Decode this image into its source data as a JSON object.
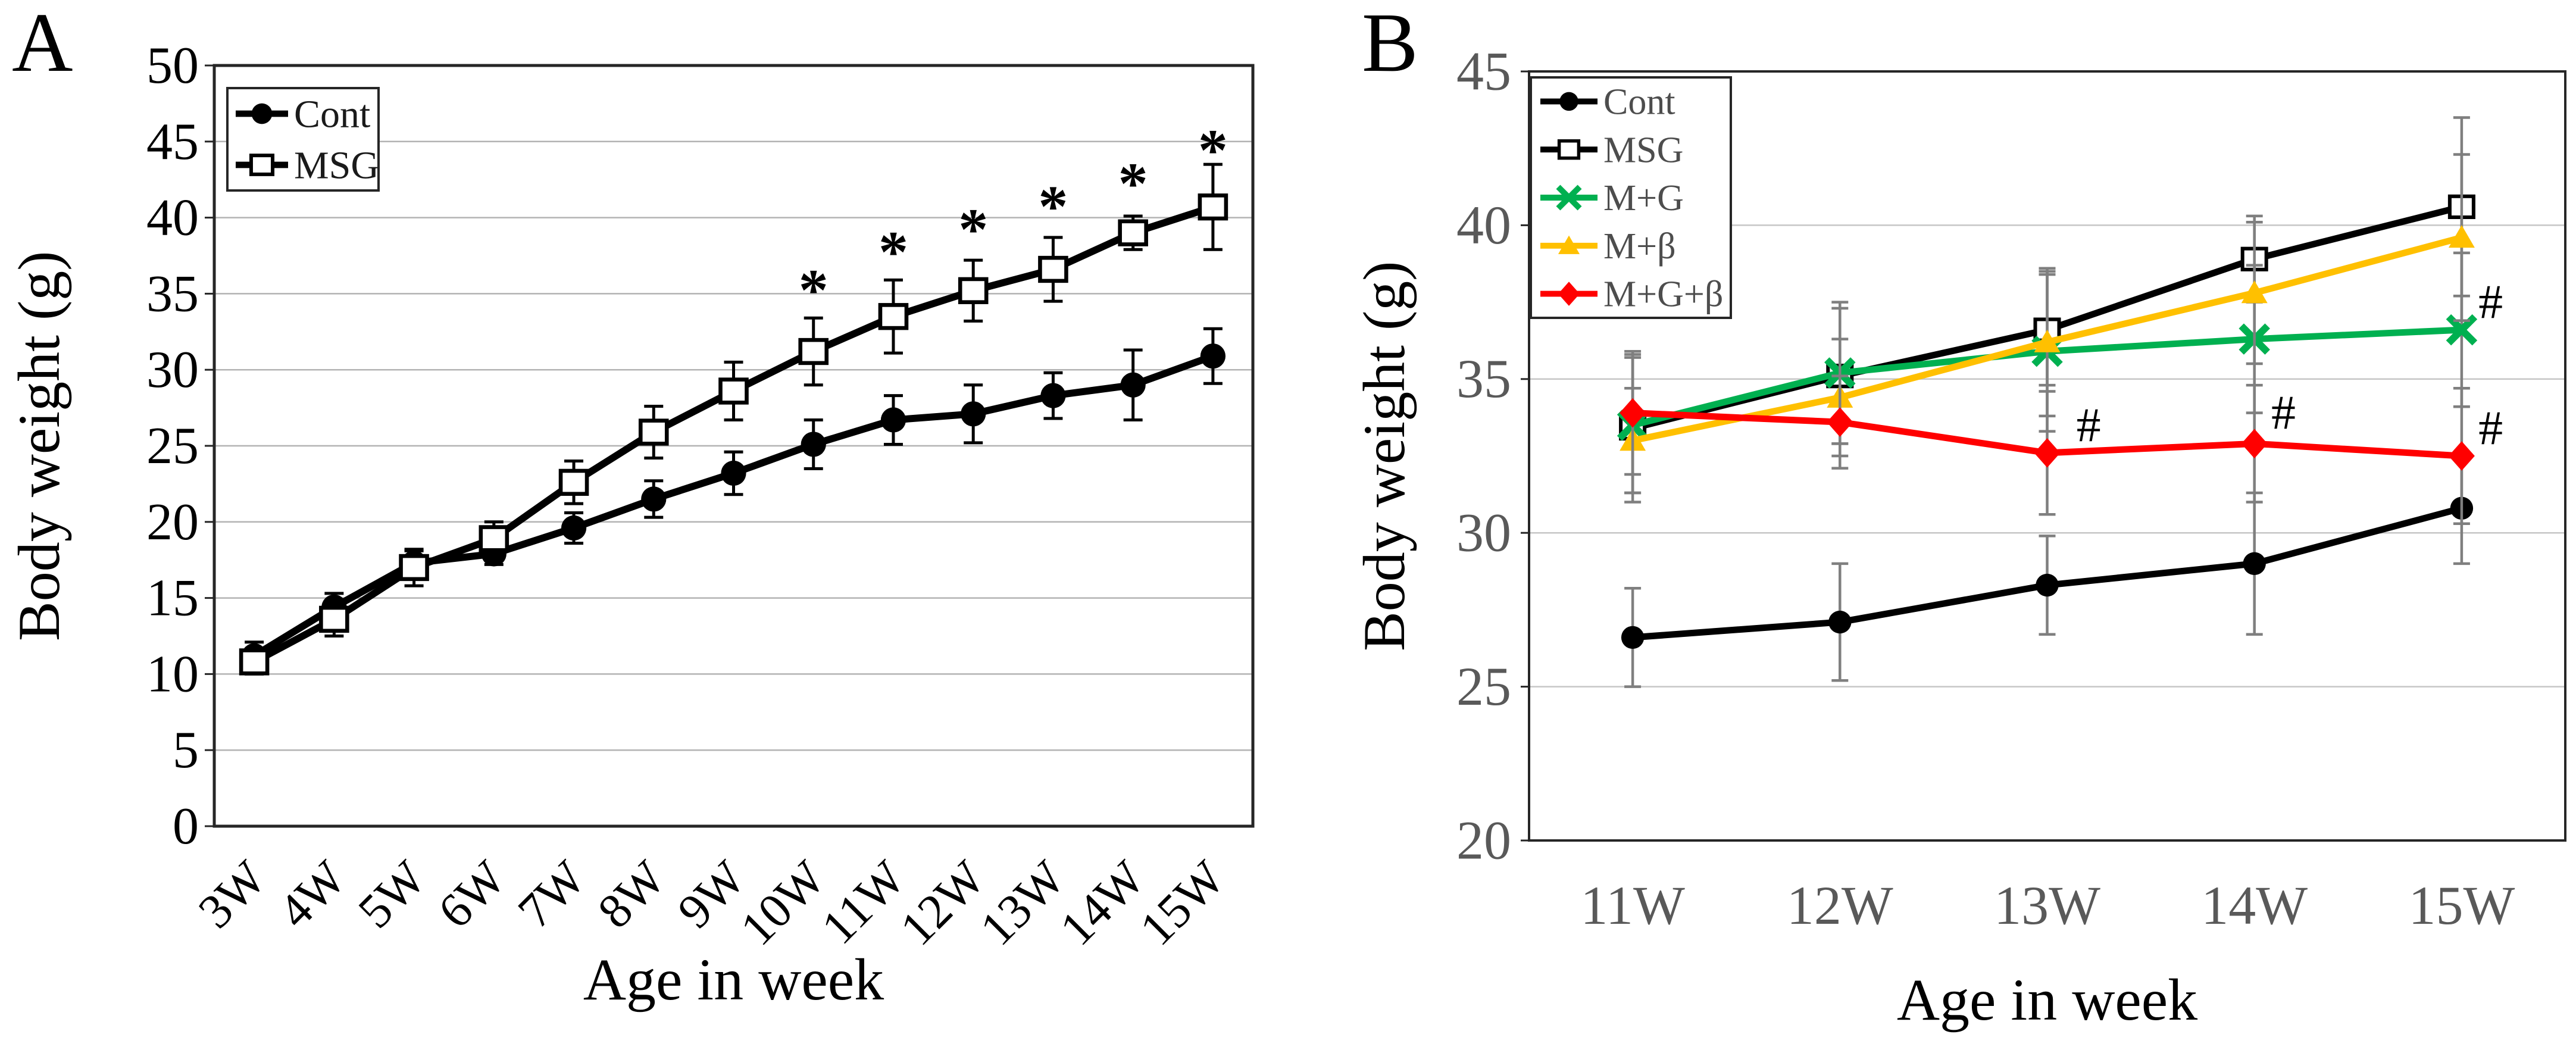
{
  "figure_background": "#ffffff",
  "chart_data": [
    {
      "type": "line",
      "panel_label": "A",
      "title": "",
      "xlabel": "Age in week",
      "ylabel": "Body weight (g)",
      "categories": [
        "3W",
        "4W",
        "5W",
        "6W",
        "7W",
        "8W",
        "9W",
        "10W",
        "11W",
        "12W",
        "13W",
        "14W",
        "15W"
      ],
      "ylim": [
        0,
        50
      ],
      "ytick_step": 5,
      "grid": true,
      "tick_color": "#000000",
      "x_label_rotation": -45,
      "error_color": "#000000",
      "legend_position": "top-left",
      "series": [
        {
          "name": "Cont",
          "color": "#000000",
          "marker": "circle",
          "values": [
            11.2,
            14.4,
            17.3,
            17.9,
            19.6,
            21.5,
            23.2,
            25.1,
            26.7,
            27.1,
            28.3,
            29.0,
            30.9
          ],
          "errors": [
            0.9,
            0.9,
            0.8,
            0.7,
            1.0,
            1.2,
            1.4,
            1.6,
            1.6,
            1.9,
            1.5,
            2.3,
            1.8
          ]
        },
        {
          "name": "MSG",
          "color": "#000000",
          "marker": "square-open",
          "values": [
            10.8,
            13.6,
            17.0,
            18.9,
            22.6,
            25.9,
            28.6,
            31.2,
            33.5,
            35.2,
            36.6,
            39.0,
            40.7
          ],
          "errors": [
            0.8,
            1.1,
            1.2,
            1.1,
            1.4,
            1.7,
            1.9,
            2.2,
            2.4,
            2.0,
            2.1,
            1.1,
            2.8
          ]
        }
      ],
      "annotations": [
        {
          "text": "*",
          "cat": "10W",
          "y": 35.7,
          "dx": 0
        },
        {
          "text": "*",
          "cat": "11W",
          "y": 38.2,
          "dx": 0
        },
        {
          "text": "*",
          "cat": "12W",
          "y": 39.7,
          "dx": 0
        },
        {
          "text": "*",
          "cat": "13W",
          "y": 41.2,
          "dx": 0
        },
        {
          "text": "*",
          "cat": "14W",
          "y": 42.7,
          "dx": 0
        },
        {
          "text": "*",
          "cat": "15W",
          "y": 44.9,
          "dx": 0
        }
      ],
      "legend_text_color": "#1a1a1a"
    },
    {
      "type": "line",
      "panel_label": "B",
      "title": "",
      "xlabel": "Age in week",
      "ylabel": "Body weight (g)",
      "categories": [
        "11W",
        "12W",
        "13W",
        "14W",
        "15W"
      ],
      "ylim": [
        20,
        45
      ],
      "ytick_step": 5,
      "grid": true,
      "tick_color": "#595959",
      "x_label_rotation": 0,
      "error_color": "#7f7f7f",
      "legend_position": "top-left",
      "series": [
        {
          "name": "Cont",
          "color": "#000000",
          "marker": "circle",
          "values": [
            26.6,
            27.1,
            28.3,
            29.0,
            30.8
          ],
          "errors": [
            1.6,
            1.9,
            1.6,
            2.3,
            1.8
          ]
        },
        {
          "name": "MSG",
          "color": "#000000",
          "marker": "square-open",
          "values": [
            33.4,
            35.1,
            36.6,
            38.9,
            40.6
          ],
          "errors": [
            2.4,
            2.2,
            1.8,
            1.4,
            2.9
          ]
        },
        {
          "name": "M+G",
          "color": "#00B050",
          "marker": "x",
          "values": [
            33.5,
            35.2,
            35.9,
            36.3,
            36.6
          ],
          "errors": [
            2.2,
            2.3,
            2.6,
            2.4,
            2.5
          ]
        },
        {
          "name": "M+β",
          "color": "#FFC000",
          "marker": "triangle",
          "values": [
            33.0,
            34.4,
            36.2,
            37.8,
            39.6
          ],
          "errors": [
            1.7,
            1.9,
            2.4,
            2.3,
            2.7
          ]
        },
        {
          "name": "M+G+β",
          "color": "#FF0000",
          "marker": "diamond",
          "values": [
            33.9,
            33.6,
            32.6,
            32.9,
            32.5
          ],
          "errors": [
            2.0,
            1.5,
            2.0,
            1.9,
            2.2
          ]
        }
      ],
      "annotations": [
        {
          "text": "#",
          "cat": "13W",
          "y": 33.5,
          "dx": 0.2
        },
        {
          "text": "#",
          "cat": "14W",
          "y": 33.9,
          "dx": 0.14
        },
        {
          "text": "#",
          "cat": "15W",
          "y": 37.5,
          "dx": 0.14
        },
        {
          "text": "#",
          "cat": "15W",
          "y": 33.4,
          "dx": 0.14
        }
      ],
      "legend_text_color": "#4d4d4d"
    }
  ]
}
